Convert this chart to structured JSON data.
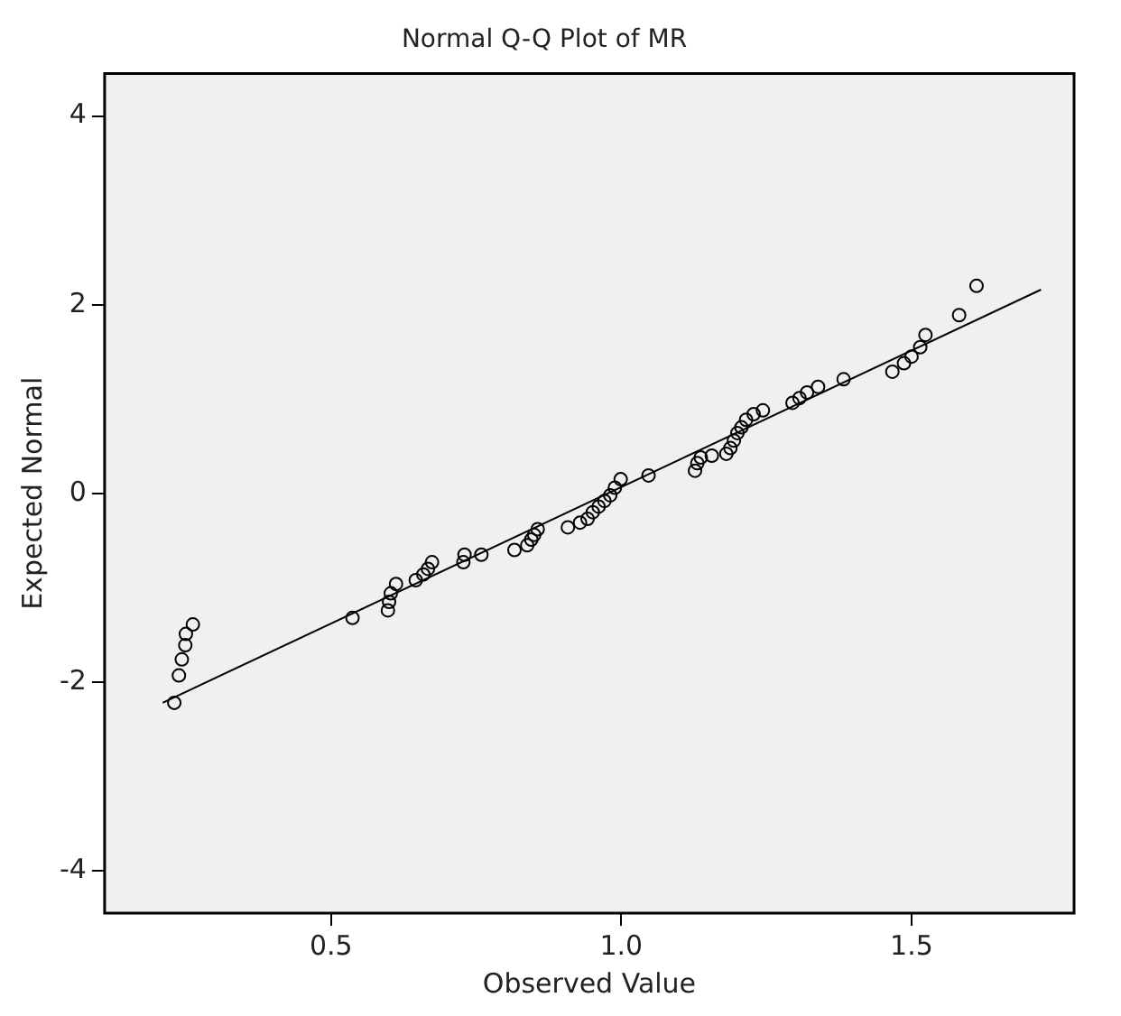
{
  "chart_data": {
    "type": "scatter",
    "title": "Normal Q-Q Plot of MR",
    "xlabel": "Observed Value",
    "ylabel": "Expected Normal",
    "xlim": [
      0.11,
      1.78
    ],
    "ylim": [
      -4.45,
      4.45
    ],
    "xticks": [
      0.5,
      {
        "value": 1,
        "label": "1.0"
      },
      1.5
    ],
    "yticks": [
      -4,
      -2,
      0,
      2,
      4
    ],
    "grid": false,
    "legend": false,
    "marker": "circle",
    "series": [
      {
        "type": "scatter",
        "color": "#000000",
        "x": [
          0.23,
          0.238,
          0.243,
          0.249,
          0.25,
          0.262,
          0.537,
          0.598,
          0.6,
          0.603,
          0.612,
          0.646,
          0.659,
          0.667,
          0.674,
          0.728,
          0.73,
          0.759,
          0.816,
          0.838,
          0.845,
          0.85,
          0.856,
          0.908,
          0.929,
          0.942,
          0.951,
          0.961,
          0.971,
          0.981,
          0.989,
          0.999,
          1.047,
          1.127,
          1.131,
          1.137,
          1.156,
          1.181,
          1.188,
          1.194,
          1.2,
          1.207,
          1.215,
          1.228,
          1.244,
          1.295,
          1.307,
          1.32,
          1.339,
          1.383,
          1.467,
          1.487,
          1.5,
          1.515,
          1.524,
          1.582,
          1.612
        ],
        "values": [
          -2.22,
          -1.93,
          -1.76,
          -1.61,
          -1.49,
          -1.39,
          -1.32,
          -1.24,
          -1.15,
          -1.06,
          -0.96,
          -0.92,
          -0.86,
          -0.8,
          -0.73,
          -0.73,
          -0.65,
          -0.65,
          -0.6,
          -0.55,
          -0.49,
          -0.44,
          -0.38,
          -0.36,
          -0.31,
          -0.27,
          -0.2,
          -0.14,
          -0.08,
          -0.02,
          0.06,
          0.15,
          0.19,
          0.24,
          0.32,
          0.38,
          0.4,
          0.42,
          0.48,
          0.56,
          0.64,
          0.7,
          0.78,
          0.84,
          0.88,
          0.96,
          1.01,
          1.07,
          1.13,
          1.21,
          1.29,
          1.38,
          1.45,
          1.55,
          1.68,
          1.89,
          2.2
        ]
      },
      {
        "type": "line",
        "color": "#000000",
        "marker": "none",
        "x": [
          0.21,
          1.723
        ],
        "values": [
          -2.22,
          2.16
        ]
      }
    ]
  }
}
